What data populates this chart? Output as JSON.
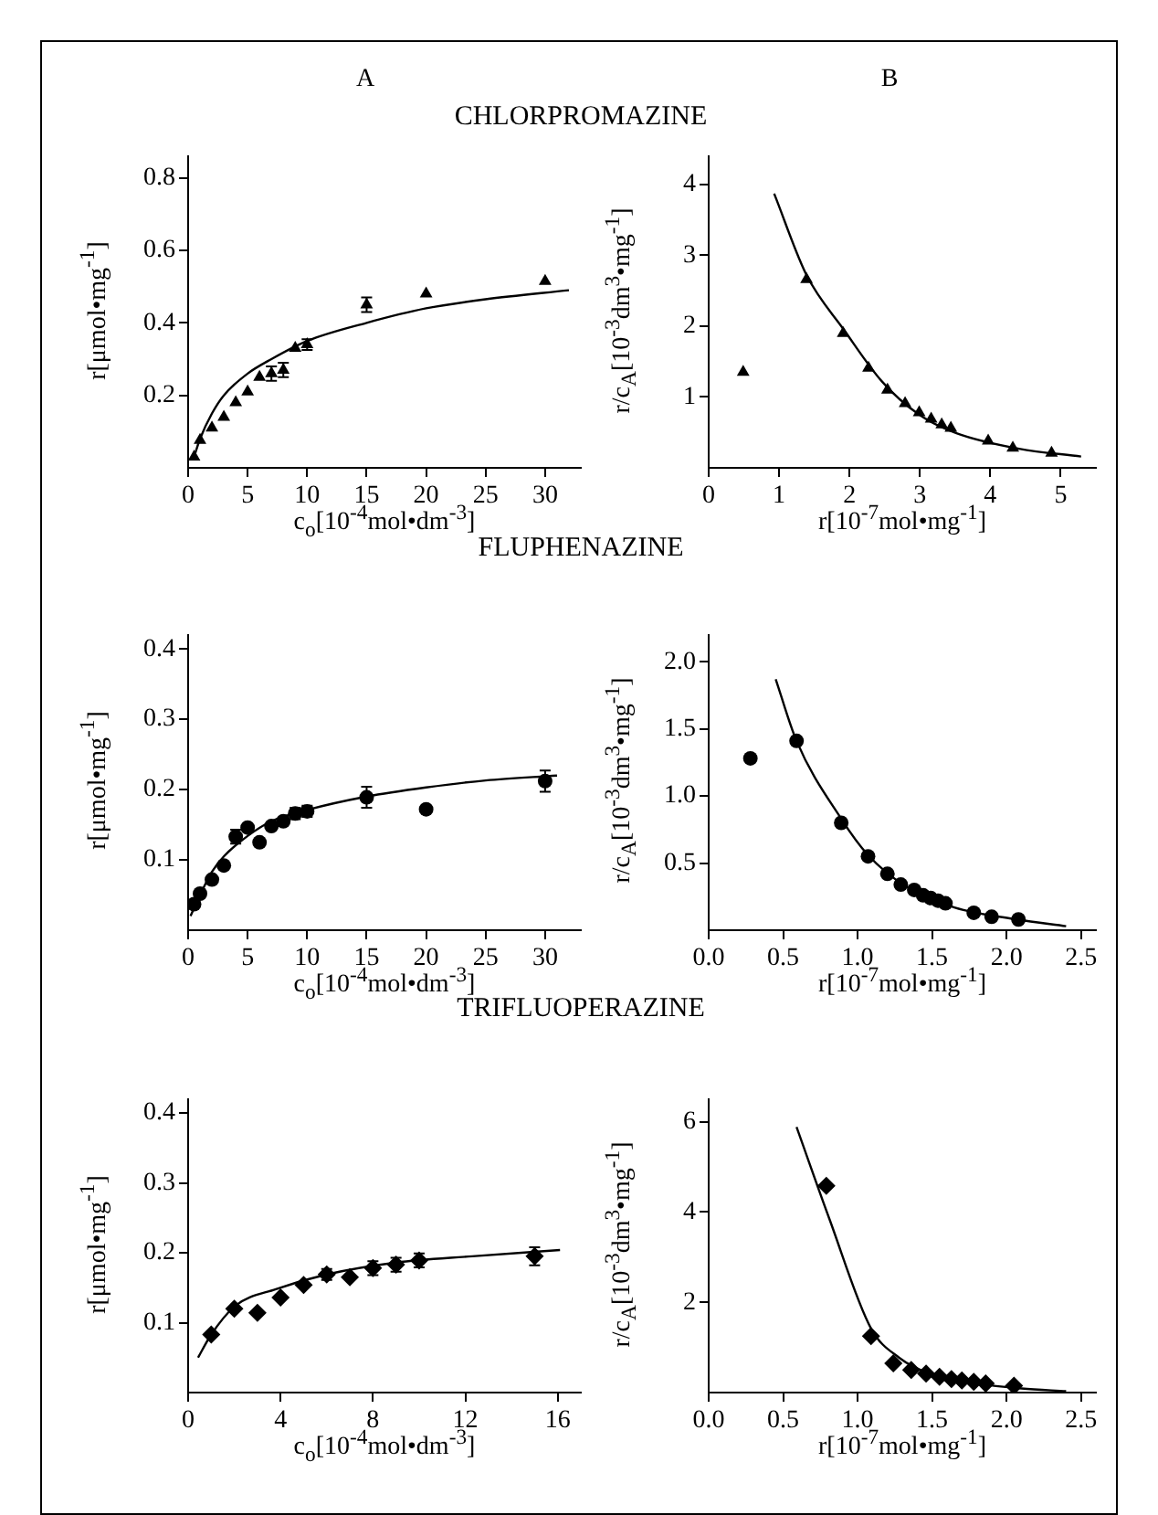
{
  "chart_data": [
    {
      "type": "scatter",
      "title": "CHLORPROMAZINE",
      "subtitle": "A",
      "xlabel": "c$_{o}$[10$^{-4}$mol•dm$^{-3}$]",
      "ylabel": "r[μmol•mg$^{-1}$]",
      "xlim": [
        0,
        33
      ],
      "xticks": [
        0,
        5,
        10,
        15,
        20,
        25,
        30
      ],
      "ylim": [
        0,
        0.86
      ],
      "yticks": [
        0.2,
        0.4,
        0.6,
        0.8
      ],
      "series": [
        {
          "type": "scatter",
          "marker": "triangle",
          "color": "#000000",
          "x": [
            0.5,
            1,
            2,
            3,
            4,
            5,
            6,
            7,
            8,
            9,
            10,
            15,
            20,
            30
          ],
          "values": [
            0.03,
            0.076,
            0.11,
            0.14,
            0.18,
            0.21,
            0.25,
            0.26,
            0.27,
            0.33,
            0.34,
            0.45,
            0.48,
            0.515
          ],
          "errors": [
            null,
            null,
            null,
            null,
            null,
            null,
            null,
            0.02,
            0.02,
            null,
            0.015,
            0.02,
            null,
            null
          ]
        },
        {
          "type": "line",
          "marker": "none",
          "color": "#000000",
          "x": [
            0.5,
            1,
            2,
            3,
            5,
            7,
            10,
            15,
            20,
            25,
            32
          ],
          "values": [
            0.03,
            0.08,
            0.15,
            0.2,
            0.26,
            0.3,
            0.35,
            0.4,
            0.44,
            0.465,
            0.49
          ]
        }
      ]
    },
    {
      "type": "scatter",
      "subtitle": "B",
      "xlabel": "r[10$^{-7}$mol•mg$^{-1}$]",
      "ylabel": "r/c$_{A}$[10$^{-3}$dm$^{3}$•mg$^{-1}$]",
      "xlim": [
        0,
        5.5
      ],
      "xticks": [
        0,
        1,
        2,
        3,
        4,
        5
      ],
      "ylim": [
        0,
        4.4
      ],
      "yticks": [
        1,
        2,
        3,
        4
      ],
      "series": [
        {
          "type": "scatter",
          "marker": "triangle",
          "color": "#000000",
          "x": [
            0.49,
            1.39,
            1.91,
            2.27,
            2.54,
            2.79,
            2.99,
            3.16,
            3.31,
            3.44,
            3.97,
            4.32,
            4.87
          ],
          "values": [
            1.35,
            2.66,
            1.9,
            1.41,
            1.1,
            0.91,
            0.78,
            0.69,
            0.61,
            0.56,
            0.38,
            0.28,
            0.21
          ]
        },
        {
          "type": "line",
          "marker": "none",
          "color": "#000000",
          "x": [
            0.93,
            1.39,
            1.92,
            2.46,
            2.99,
            3.52,
            4.41,
            5.29
          ],
          "values": [
            3.87,
            2.72,
            1.95,
            1.22,
            0.75,
            0.49,
            0.27,
            0.16
          ]
        }
      ]
    },
    {
      "type": "scatter",
      "title": "FLUPHENAZINE",
      "xlabel": "c$_{o}$[10$^{-4}$mol•dm$^{-3}$]",
      "ylabel": "r[μmol•mg$^{-1}$]",
      "xlim": [
        0,
        33
      ],
      "xticks": [
        0,
        5,
        10,
        15,
        20,
        25,
        30
      ],
      "ylim": [
        0,
        0.42
      ],
      "yticks": [
        0.1,
        0.2,
        0.3,
        0.4
      ],
      "series": [
        {
          "type": "scatter",
          "marker": "circle",
          "color": "#000000",
          "x": [
            0.5,
            1,
            2,
            3,
            4,
            5,
            6,
            7,
            8,
            9,
            10,
            15,
            20,
            30
          ],
          "values": [
            0.037,
            0.052,
            0.072,
            0.092,
            0.133,
            0.146,
            0.125,
            0.148,
            0.155,
            0.166,
            0.169,
            0.189,
            0.172,
            0.212
          ],
          "errors": [
            null,
            null,
            null,
            null,
            0.01,
            null,
            null,
            null,
            null,
            0.008,
            0.008,
            0.015,
            null,
            0.015
          ]
        },
        {
          "type": "line",
          "marker": "none",
          "color": "#000000",
          "x": [
            0.2,
            1,
            2,
            3,
            5,
            7,
            10,
            15,
            20,
            25,
            31
          ],
          "values": [
            0.02,
            0.05,
            0.083,
            0.105,
            0.134,
            0.155,
            0.171,
            0.19,
            0.203,
            0.213,
            0.22
          ]
        }
      ]
    },
    {
      "type": "scatter",
      "xlabel": "r[10$^{-7}$mol•mg$^{-1}$]",
      "ylabel": "r/c$_{A}$[10$^{-3}$dm$^{3}$•mg$^{-1}$]",
      "xlim": [
        0,
        2.6
      ],
      "xticks": [
        {
          "value": 0,
          "label": "0.0"
        },
        {
          "value": 0.5,
          "label": "0.5"
        },
        {
          "value": 1,
          "label": "1.0"
        },
        {
          "value": 1.5,
          "label": "1.5"
        },
        {
          "value": 2,
          "label": "2.0"
        },
        {
          "value": 2.5,
          "label": "2.5"
        }
      ],
      "ylim": [
        0,
        2.2
      ],
      "yticks": [
        {
          "value": 0.5,
          "label": "0.5"
        },
        {
          "value": 1,
          "label": "1.0"
        },
        {
          "value": 1.5,
          "label": "1.5"
        },
        {
          "value": 2,
          "label": "2.0"
        }
      ],
      "series": [
        {
          "type": "scatter",
          "marker": "circle",
          "color": "#000000",
          "x": [
            0.28,
            0.59,
            0.89,
            1.07,
            1.2,
            1.29,
            1.38,
            1.44,
            1.49,
            1.54,
            1.59,
            1.78,
            1.9,
            2.08
          ],
          "values": [
            1.28,
            1.41,
            0.8,
            0.55,
            0.42,
            0.34,
            0.3,
            0.26,
            0.24,
            0.22,
            0.2,
            0.13,
            0.1,
            0.08
          ]
        },
        {
          "type": "line",
          "marker": "none",
          "color": "#000000",
          "x": [
            0.45,
            0.59,
            0.89,
            1.07,
            1.32,
            1.65,
            2.07,
            2.4
          ],
          "values": [
            1.87,
            1.41,
            0.83,
            0.56,
            0.33,
            0.17,
            0.08,
            0.03
          ]
        }
      ]
    },
    {
      "type": "scatter",
      "title": "TRIFLUOPERAZINE",
      "xlabel": "c$_{o}$[10$^{-4}$mol•dm$^{-3}$]",
      "ylabel": "r[μmol•mg$^{-1}$]",
      "xlim": [
        0,
        17
      ],
      "xticks": [
        0,
        4,
        8,
        12,
        16
      ],
      "ylim": [
        0,
        0.42
      ],
      "yticks": [
        0.1,
        0.2,
        0.3,
        0.4
      ],
      "series": [
        {
          "type": "scatter",
          "marker": "diamond",
          "color": "#000000",
          "x": [
            1,
            2,
            3,
            4,
            5,
            6,
            7,
            8,
            9,
            10,
            15
          ],
          "values": [
            0.083,
            0.12,
            0.114,
            0.136,
            0.154,
            0.169,
            0.165,
            0.178,
            0.183,
            0.189,
            0.195
          ],
          "errors": [
            null,
            null,
            null,
            null,
            null,
            0.008,
            null,
            0.01,
            0.01,
            0.01,
            0.013
          ]
        },
        {
          "type": "line",
          "marker": "none",
          "color": "#000000",
          "x": [
            0.43,
            1,
            2.04,
            3.8,
            6,
            9,
            12.3,
            16.1
          ],
          "values": [
            0.05,
            0.083,
            0.124,
            0.148,
            0.169,
            0.186,
            0.195,
            0.204
          ]
        }
      ]
    },
    {
      "type": "scatter",
      "xlabel": "r[10$^{-7}$mol•mg$^{-1}$]",
      "ylabel": "r/c$_{A}$[10$^{-3}$dm$^{3}$•mg$^{-1}$]",
      "xlim": [
        0,
        2.6
      ],
      "xticks": [
        {
          "value": 0,
          "label": "0.0"
        },
        {
          "value": 0.5,
          "label": "0.5"
        },
        {
          "value": 1,
          "label": "1.0"
        },
        {
          "value": 1.5,
          "label": "1.5"
        },
        {
          "value": 2,
          "label": "2.0"
        },
        {
          "value": 2.5,
          "label": "2.5"
        }
      ],
      "ylim": [
        0,
        6.5
      ],
      "yticks": [
        2,
        4,
        6
      ],
      "series": [
        {
          "type": "scatter",
          "marker": "diamond",
          "color": "#000000",
          "x": [
            0.79,
            1.09,
            1.24,
            1.36,
            1.46,
            1.55,
            1.63,
            1.7,
            1.78,
            1.86,
            2.05
          ],
          "values": [
            4.58,
            1.25,
            0.65,
            0.5,
            0.42,
            0.35,
            0.3,
            0.27,
            0.24,
            0.2,
            0.15
          ]
        },
        {
          "type": "line",
          "marker": "none",
          "color": "#000000",
          "x": [
            0.59,
            0.81,
            1.09,
            1.28,
            1.5,
            1.8,
            2.1,
            2.4
          ],
          "values": [
            5.88,
            3.85,
            1.42,
            0.77,
            0.4,
            0.2,
            0.09,
            0.03
          ]
        }
      ]
    }
  ]
}
